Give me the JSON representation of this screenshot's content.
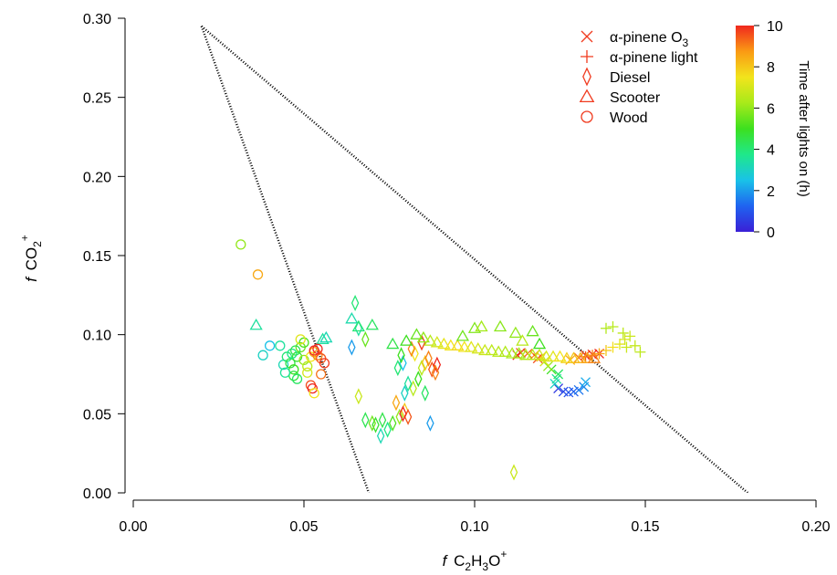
{
  "chart_data": {
    "type": "scatter",
    "xlabel": {
      "italic": "f",
      "main": "C",
      "sub1": "2",
      "mid": "H",
      "sub2": "3",
      "tail": "O",
      "sup": "+"
    },
    "ylabel": {
      "italic": "f",
      "main": "CO",
      "sub": "2",
      "sup": "+"
    },
    "xlim": [
      0,
      0.2
    ],
    "ylim": [
      0,
      0.3
    ],
    "xticks": [
      "0.00",
      "0.05",
      "0.10",
      "0.15",
      "0.20"
    ],
    "yticks": [
      "0.00",
      "0.05",
      "0.10",
      "0.15",
      "0.20",
      "0.25",
      "0.30"
    ],
    "grid": false,
    "reference_lines": [
      {
        "x": [
          0.02,
          0.069
        ],
        "y": [
          0.295,
          0.0
        ]
      },
      {
        "x": [
          0.02,
          0.18
        ],
        "y": [
          0.295,
          0.0
        ]
      }
    ],
    "legend": {
      "placement": "top-right",
      "entries": [
        {
          "marker": "x",
          "text": "α-pinene O",
          "sub": "3"
        },
        {
          "marker": "+",
          "text": "α-pinene light",
          "sub": ""
        },
        {
          "marker": "diamond",
          "text": "Diesel",
          "sub": ""
        },
        {
          "marker": "triangle",
          "text": "Scooter",
          "sub": ""
        },
        {
          "marker": "circle",
          "text": "Wood",
          "sub": ""
        }
      ],
      "color": "#f03a1e"
    },
    "colorbar": {
      "label": "Time after lights on (h)",
      "min": 0,
      "max": 10,
      "ticks": [
        "0",
        "2",
        "4",
        "6",
        "8",
        "10"
      ],
      "colors": [
        "#3a1fd6",
        "#1f63f0",
        "#19c2e8",
        "#1fe88a",
        "#3de01f",
        "#a8ea1a",
        "#f2e41c",
        "#fa9a14",
        "#f0281e"
      ]
    },
    "series": [
      {
        "name": "α-pinene O3",
        "marker": "x",
        "points": [
          [
            0.1245,
            0.066,
            0.5
          ],
          [
            0.126,
            0.064,
            0.8
          ],
          [
            0.1275,
            0.0635,
            1.0
          ],
          [
            0.129,
            0.064,
            1.2
          ],
          [
            0.1305,
            0.065,
            1.5
          ],
          [
            0.132,
            0.067,
            1.8
          ],
          [
            0.1325,
            0.07,
            2.2
          ],
          [
            0.1235,
            0.069,
            3.0
          ],
          [
            0.124,
            0.072,
            3.5
          ],
          [
            0.1245,
            0.075,
            4.2
          ],
          [
            0.1225,
            0.078,
            5.0
          ],
          [
            0.1215,
            0.08,
            6.0
          ],
          [
            0.1205,
            0.083,
            7.0
          ],
          [
            0.1195,
            0.086,
            8.0
          ],
          [
            0.1175,
            0.087,
            8.8
          ],
          [
            0.1155,
            0.088,
            9.3
          ],
          [
            0.1135,
            0.0885,
            9.7
          ],
          [
            0.1125,
            0.087,
            10.0
          ],
          [
            0.1185,
            0.085,
            9.6
          ],
          [
            0.128,
            0.084,
            8.5
          ],
          [
            0.1305,
            0.0855,
            9.2
          ],
          [
            0.1325,
            0.087,
            9.6
          ],
          [
            0.1345,
            0.0875,
            9.9
          ],
          [
            0.1365,
            0.088,
            10.0
          ]
        ]
      },
      {
        "name": "α-pinene light",
        "marker": "+",
        "points": [
          [
            0.1325,
            0.086,
            9.5
          ],
          [
            0.1345,
            0.087,
            9.0
          ],
          [
            0.1365,
            0.088,
            8.5
          ],
          [
            0.1385,
            0.09,
            8.0
          ],
          [
            0.1405,
            0.092,
            7.6
          ],
          [
            0.1425,
            0.094,
            7.2
          ],
          [
            0.144,
            0.097,
            7.0
          ],
          [
            0.1455,
            0.099,
            6.8
          ],
          [
            0.147,
            0.093,
            6.7
          ],
          [
            0.1485,
            0.089,
            6.6
          ],
          [
            0.1405,
            0.105,
            6.5
          ],
          [
            0.1385,
            0.104,
            6.4
          ],
          [
            0.1435,
            0.101,
            6.6
          ],
          [
            0.1445,
            0.092,
            6.8
          ]
        ]
      },
      {
        "name": "Diesel",
        "marker": "diamond",
        "points": [
          [
            0.065,
            0.12,
            4.0
          ],
          [
            0.066,
            0.104,
            3.5
          ],
          [
            0.064,
            0.092,
            2.0
          ],
          [
            0.068,
            0.097,
            5.5
          ],
          [
            0.073,
            0.046,
            4.5
          ],
          [
            0.071,
            0.043,
            4.8
          ],
          [
            0.076,
            0.044,
            5.2
          ],
          [
            0.078,
            0.048,
            6.0
          ],
          [
            0.0795,
            0.052,
            8.0
          ],
          [
            0.0805,
            0.048,
            9.5
          ],
          [
            0.079,
            0.05,
            10.0
          ],
          [
            0.077,
            0.057,
            8.5
          ],
          [
            0.082,
            0.066,
            6.5
          ],
          [
            0.0835,
            0.072,
            5.0
          ],
          [
            0.0845,
            0.079,
            6.5
          ],
          [
            0.0855,
            0.082,
            8.0
          ],
          [
            0.0865,
            0.085,
            9.0
          ],
          [
            0.0875,
            0.078,
            9.5
          ],
          [
            0.089,
            0.081,
            10.0
          ],
          [
            0.0825,
            0.088,
            7.5
          ],
          [
            0.0815,
            0.091,
            9.0
          ],
          [
            0.0845,
            0.095,
            9.8
          ],
          [
            0.0805,
            0.069,
            3.5
          ],
          [
            0.0795,
            0.063,
            3.0
          ],
          [
            0.079,
            0.082,
            2.5
          ],
          [
            0.0775,
            0.079,
            4.0
          ],
          [
            0.0785,
            0.087,
            5.0
          ],
          [
            0.0855,
            0.063,
            4.2
          ],
          [
            0.087,
            0.044,
            2.0
          ],
          [
            0.066,
            0.061,
            6.8
          ],
          [
            0.068,
            0.046,
            4.4
          ],
          [
            0.07,
            0.044,
            5.6
          ],
          [
            0.1115,
            0.013,
            6.8
          ],
          [
            0.0745,
            0.04,
            3.8
          ],
          [
            0.0725,
            0.036,
            3.2
          ],
          [
            0.0885,
            0.076,
            9.0
          ]
        ]
      },
      {
        "name": "Scooter",
        "marker": "triangle",
        "points": [
          [
            0.036,
            0.106,
            3.5
          ],
          [
            0.0555,
            0.097,
            3.5
          ],
          [
            0.0565,
            0.098,
            3.2
          ],
          [
            0.064,
            0.11,
            3.3
          ],
          [
            0.066,
            0.105,
            4.0
          ],
          [
            0.07,
            0.106,
            4.2
          ],
          [
            0.076,
            0.094,
            4.5
          ],
          [
            0.08,
            0.096,
            5.0
          ],
          [
            0.083,
            0.1,
            5.5
          ],
          [
            0.085,
            0.098,
            6.0
          ],
          [
            0.087,
            0.096,
            6.5
          ],
          [
            0.089,
            0.095,
            7.0
          ],
          [
            0.091,
            0.094,
            7.3
          ],
          [
            0.093,
            0.093,
            7.5
          ],
          [
            0.095,
            0.093,
            7.7
          ],
          [
            0.097,
            0.092,
            7.5
          ],
          [
            0.099,
            0.092,
            7.2
          ],
          [
            0.101,
            0.091,
            7.0
          ],
          [
            0.103,
            0.09,
            6.8
          ],
          [
            0.105,
            0.09,
            6.6
          ],
          [
            0.107,
            0.089,
            6.5
          ],
          [
            0.109,
            0.089,
            6.4
          ],
          [
            0.111,
            0.088,
            6.3
          ],
          [
            0.113,
            0.088,
            6.2
          ],
          [
            0.115,
            0.087,
            6.4
          ],
          [
            0.117,
            0.087,
            6.6
          ],
          [
            0.119,
            0.087,
            6.8
          ],
          [
            0.121,
            0.086,
            7.0
          ],
          [
            0.123,
            0.086,
            7.2
          ],
          [
            0.125,
            0.086,
            7.5
          ],
          [
            0.127,
            0.085,
            7.8
          ],
          [
            0.129,
            0.085,
            8.0
          ],
          [
            0.131,
            0.085,
            8.3
          ],
          [
            0.133,
            0.085,
            8.6
          ],
          [
            0.135,
            0.085,
            9.0
          ],
          [
            0.1,
            0.104,
            5.8
          ],
          [
            0.102,
            0.105,
            6.2
          ],
          [
            0.1075,
            0.105,
            5.9
          ],
          [
            0.112,
            0.101,
            6.0
          ],
          [
            0.114,
            0.096,
            6.5
          ],
          [
            0.117,
            0.102,
            5.5
          ],
          [
            0.119,
            0.094,
            5.0
          ],
          [
            0.0965,
            0.099,
            5.6
          ]
        ]
      },
      {
        "name": "Wood",
        "marker": "circle",
        "points": [
          [
            0.0315,
            0.157,
            6.0
          ],
          [
            0.0365,
            0.138,
            8.5
          ],
          [
            0.038,
            0.087,
            3.0
          ],
          [
            0.04,
            0.093,
            2.5
          ],
          [
            0.043,
            0.093,
            3.5
          ],
          [
            0.044,
            0.081,
            3.2
          ],
          [
            0.045,
            0.086,
            4.0
          ],
          [
            0.046,
            0.082,
            4.5
          ],
          [
            0.047,
            0.078,
            5.0
          ],
          [
            0.048,
            0.086,
            4.8
          ],
          [
            0.049,
            0.092,
            5.5
          ],
          [
            0.05,
            0.084,
            6.0
          ],
          [
            0.051,
            0.08,
            6.5
          ],
          [
            0.052,
            0.086,
            7.5
          ],
          [
            0.053,
            0.089,
            8.5
          ],
          [
            0.054,
            0.087,
            9.0
          ],
          [
            0.055,
            0.085,
            9.5
          ],
          [
            0.056,
            0.082,
            9.8
          ],
          [
            0.053,
            0.09,
            10.0
          ],
          [
            0.054,
            0.091,
            10.0
          ],
          [
            0.052,
            0.068,
            9.6
          ],
          [
            0.0525,
            0.066,
            10.0
          ],
          [
            0.053,
            0.063,
            7.5
          ],
          [
            0.047,
            0.074,
            4.6
          ],
          [
            0.048,
            0.072,
            4.2
          ],
          [
            0.051,
            0.076,
            7.0
          ],
          [
            0.055,
            0.075,
            9.2
          ],
          [
            0.0465,
            0.088,
            3.8
          ],
          [
            0.05,
            0.095,
            5.2
          ],
          [
            0.049,
            0.097,
            7.2
          ],
          [
            0.0475,
            0.09,
            4.4
          ],
          [
            0.0445,
            0.076,
            3.6
          ]
        ]
      }
    ]
  }
}
